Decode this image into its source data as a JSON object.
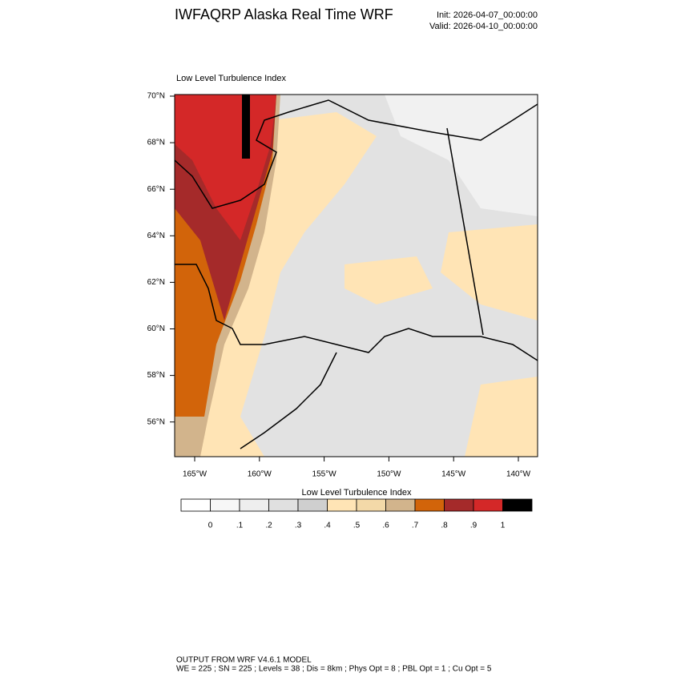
{
  "header": {
    "title": "IWFAQRP Alaska Real Time WRF",
    "init": "Init: 2026-04-07_00:00:00",
    "valid": "Valid: 2026-04-10_00:00:00"
  },
  "map": {
    "title": "Low Level Turbulence Index",
    "lat_labels": [
      "70°N",
      "68°N",
      "66°N",
      "64°N",
      "62°N",
      "60°N",
      "58°N",
      "56°N"
    ],
    "lon_labels": [
      "165°W",
      "160°W",
      "155°W",
      "150°W",
      "145°W",
      "140°W"
    ]
  },
  "colorbar": {
    "title": "Low Level Turbulence Index",
    "colors": [
      "#ffffff",
      "#f7f7f7",
      "#eeeeee",
      "#e0e0e0",
      "#cfcfcf",
      "#ffe4b5",
      "#f3d9a8",
      "#d2b48c",
      "#d2640a",
      "#a52a2a",
      "#d42828",
      "#000000"
    ],
    "labels": [
      "0",
      ".1",
      ".2",
      ".3",
      ".4",
      ".5",
      ".6",
      ".7",
      ".8",
      ".9",
      "1"
    ]
  },
  "footer": {
    "line1": "OUTPUT FROM WRF V4.6.1 MODEL",
    "line2": "WE = 225 ; SN = 225 ; Levels = 38 ; Dis = 8km ; Phys Opt = 8 ; PBL Opt = 1 ; Cu Opt = 5"
  }
}
